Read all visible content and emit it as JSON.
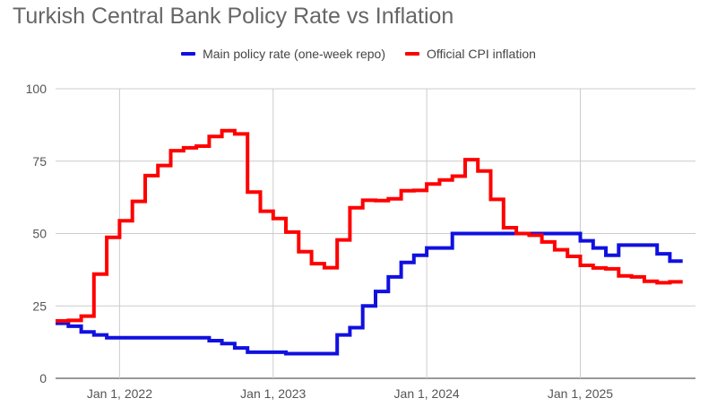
{
  "chart_data": {
    "type": "line",
    "title": "Turkish Central Bank Policy Rate vs Inflation",
    "xlabel": "",
    "ylabel": "",
    "ylim": [
      0,
      100
    ],
    "yticks": [
      0,
      25,
      50,
      75,
      100
    ],
    "xticks": [
      "Jan 1, 2022",
      "Jan 1, 2023",
      "Jan 1, 2024",
      "Jan 1, 2025"
    ],
    "legend_position": "top",
    "grid": true,
    "step": true,
    "series": [
      {
        "name": "Main policy rate (one-week repo)",
        "color": "#1010e0",
        "points": [
          [
            "2021-08",
            19
          ],
          [
            "2021-09",
            18
          ],
          [
            "2021-10",
            16
          ],
          [
            "2021-11",
            15
          ],
          [
            "2021-12",
            14
          ],
          [
            "2022-01",
            14
          ],
          [
            "2022-02",
            14
          ],
          [
            "2022-03",
            14
          ],
          [
            "2022-04",
            14
          ],
          [
            "2022-05",
            14
          ],
          [
            "2022-06",
            14
          ],
          [
            "2022-07",
            14
          ],
          [
            "2022-08",
            13
          ],
          [
            "2022-09",
            12
          ],
          [
            "2022-10",
            10.5
          ],
          [
            "2022-11",
            9
          ],
          [
            "2022-12",
            9
          ],
          [
            "2023-01",
            9
          ],
          [
            "2023-02",
            8.5
          ],
          [
            "2023-03",
            8.5
          ],
          [
            "2023-04",
            8.5
          ],
          [
            "2023-05",
            8.5
          ],
          [
            "2023-06",
            15
          ],
          [
            "2023-07",
            17.5
          ],
          [
            "2023-08",
            25
          ],
          [
            "2023-09",
            30
          ],
          [
            "2023-10",
            35
          ],
          [
            "2023-11",
            40
          ],
          [
            "2023-12",
            42.5
          ],
          [
            "2024-01",
            45
          ],
          [
            "2024-02",
            45
          ],
          [
            "2024-03",
            50
          ],
          [
            "2024-04",
            50
          ],
          [
            "2024-05",
            50
          ],
          [
            "2024-06",
            50
          ],
          [
            "2024-07",
            50
          ],
          [
            "2024-08",
            50
          ],
          [
            "2024-09",
            50
          ],
          [
            "2024-10",
            50
          ],
          [
            "2024-11",
            50
          ],
          [
            "2024-12",
            50
          ],
          [
            "2025-01",
            47.5
          ],
          [
            "2025-02",
            45
          ],
          [
            "2025-03",
            42.5
          ],
          [
            "2025-04",
            46
          ],
          [
            "2025-05",
            46
          ],
          [
            "2025-06",
            46
          ],
          [
            "2025-07",
            43
          ],
          [
            "2025-08",
            40.5
          ]
        ]
      },
      {
        "name": "Official CPI inflation",
        "color": "#ff0000",
        "points": [
          [
            "2021-08",
            19.8
          ],
          [
            "2021-09",
            20
          ],
          [
            "2021-10",
            21.5
          ],
          [
            "2021-11",
            36
          ],
          [
            "2021-12",
            48.7
          ],
          [
            "2022-01",
            54.4
          ],
          [
            "2022-02",
            61.1
          ],
          [
            "2022-03",
            70
          ],
          [
            "2022-04",
            73.5
          ],
          [
            "2022-05",
            78.6
          ],
          [
            "2022-06",
            79.6
          ],
          [
            "2022-07",
            80.2
          ],
          [
            "2022-08",
            83.5
          ],
          [
            "2022-09",
            85.5
          ],
          [
            "2022-10",
            84.4
          ],
          [
            "2022-11",
            64.3
          ],
          [
            "2022-12",
            57.7
          ],
          [
            "2023-01",
            55.2
          ],
          [
            "2023-02",
            50.5
          ],
          [
            "2023-03",
            43.7
          ],
          [
            "2023-04",
            39.6
          ],
          [
            "2023-05",
            38.2
          ],
          [
            "2023-06",
            47.8
          ],
          [
            "2023-07",
            58.9
          ],
          [
            "2023-08",
            61.5
          ],
          [
            "2023-09",
            61.4
          ],
          [
            "2023-10",
            62
          ],
          [
            "2023-11",
            64.8
          ],
          [
            "2023-12",
            64.9
          ],
          [
            "2024-01",
            67.1
          ],
          [
            "2024-02",
            68.5
          ],
          [
            "2024-03",
            69.8
          ],
          [
            "2024-04",
            75.5
          ],
          [
            "2024-05",
            71.6
          ],
          [
            "2024-06",
            61.8
          ],
          [
            "2024-07",
            52
          ],
          [
            "2024-08",
            50
          ],
          [
            "2024-09",
            49.4
          ],
          [
            "2024-10",
            47.1
          ],
          [
            "2024-11",
            44.4
          ],
          [
            "2024-12",
            42.1
          ],
          [
            "2025-01",
            39
          ],
          [
            "2025-02",
            38.1
          ],
          [
            "2025-03",
            37.8
          ],
          [
            "2025-04",
            35.4
          ],
          [
            "2025-05",
            35
          ],
          [
            "2025-06",
            33.5
          ],
          [
            "2025-07",
            33
          ],
          [
            "2025-08",
            33.3
          ]
        ]
      }
    ]
  }
}
